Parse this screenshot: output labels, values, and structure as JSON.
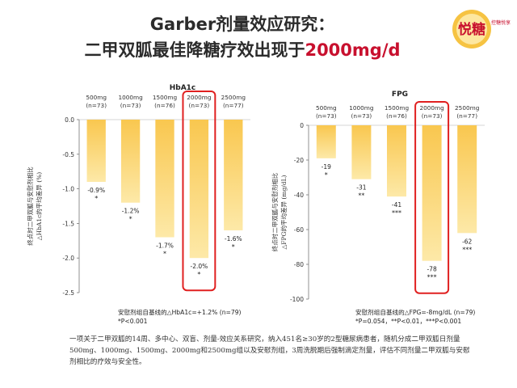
{
  "title_line1": "Garber剂量效应研究：",
  "title_line2_prefix": "二甲双胍最佳降糖疗效出现于",
  "title_line2_highlight": "2000mg/d",
  "logo": {
    "text": "悦糖",
    "side_text": "控糖悦享",
    "colors": {
      "circle": "#f6c342",
      "text": "#c8102e"
    }
  },
  "colors": {
    "bar": "#f9c74f",
    "bar_light": "#fde9a8",
    "highlight_box": "#e02020",
    "axis": "#777777"
  },
  "chart_data": [
    {
      "type": "bar",
      "title": "HbA1c",
      "categories": [
        "500mg\n(n=73)",
        "1000mg\n(n=73)",
        "1500mg\n(n=76)",
        "2000mg\n(n=73)",
        "2500mg\n(n=77)"
      ],
      "values": [
        -0.9,
        -1.2,
        -1.7,
        -2.0,
        -1.6
      ],
      "value_labels": [
        "-0.9%",
        "-1.2%",
        "-1.7%",
        "-2.0%",
        "-1.6%"
      ],
      "sig_labels": [
        "*",
        "*",
        "*",
        "*",
        "*"
      ],
      "ylabel": "终点时二甲双胍与安慰剂相比\n△HbA1c的平均差异 (%)",
      "ylim": [
        -2.5,
        0
      ],
      "yticks": [
        0,
        -0.5,
        -1,
        -1.5,
        -2,
        -2.5
      ],
      "ytick_labels": [
        "0.0",
        "-0.5",
        "-1.0",
        "-1.5",
        "-2.0",
        "-2.5"
      ],
      "highlight_category_index": 3,
      "note_lines": [
        "安慰剂组自基线的△HbA1c=+1.2% (n=79)",
        "*P<0.001"
      ]
    },
    {
      "type": "bar",
      "title": "FPG",
      "categories": [
        "500mg\n(n=73)",
        "1000mg\n(n=73)",
        "1500mg\n(n=76)",
        "2000mg\n(n=73)",
        "2500mg\n(n=77)"
      ],
      "values": [
        -19,
        -31,
        -41,
        -78,
        -62
      ],
      "value_labels": [
        "-19",
        "-31",
        "-41",
        "-78",
        "-62"
      ],
      "sig_labels": [
        "*",
        "**",
        "***",
        "***",
        "***"
      ],
      "ylabel": "终点时二甲双胍与安慰剂相比\n△FPG的平均差异 (mg/dL)",
      "ylim": [
        -100,
        0
      ],
      "yticks": [
        0,
        -20,
        -40,
        -60,
        -80,
        -100
      ],
      "ytick_labels": [
        "0",
        "-20",
        "-40",
        "-60",
        "-80",
        "-100"
      ],
      "highlight_category_index": 3,
      "note_lines": [
        "安慰剂组自基线的△FPG=-8mg/dL (n=79)",
        "*P=0.054，**P<0.01，***P<0.001"
      ]
    }
  ],
  "footnote": "一项关于二甲双胍的14周、多中心、双盲、剂量-效应关系研究，纳入451名≥30岁的2型糖尿病患者，随机分成二甲双胍日剂量500mg、1000mg、1500mg、2000mg和2500mg组以及安慰剂组，3周洗脱期后强制滴定剂量，评估不同剂量二甲双胍与安慰剂相比的疗效与安全性。"
}
